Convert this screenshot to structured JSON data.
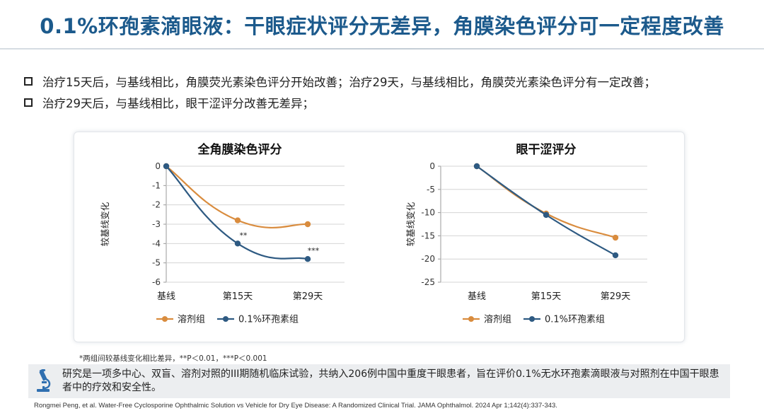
{
  "title": "0.1%环孢素滴眼液：干眼症状评分无差异，角膜染色评分可一定程度改善",
  "bullets": [
    "治疗15天后，与基线相比，角膜荧光素染色评分开始改善；治疗29天，与基线相比，角膜荧光素染色评分有一定改善；",
    "治疗29天后，与基线相比，眼干涩评分改善无差异；"
  ],
  "colors": {
    "title": "#1c5a8c",
    "vehicle": "#d98c3e",
    "cyclosporine": "#2e5a82"
  },
  "chart_data": [
    {
      "type": "line",
      "title": "全角膜染色评分",
      "ylabel": "较基线变化",
      "categories": [
        "基线",
        "第15天",
        "第29天"
      ],
      "ylim": [
        -6,
        0
      ],
      "yticks": [
        0,
        -1,
        -2,
        -3,
        -4,
        -5,
        -6
      ],
      "series": [
        {
          "name": "溶剂组",
          "color": "#d98c3e",
          "values": [
            0,
            -2.8,
            -3.0
          ]
        },
        {
          "name": "0.1%环孢素组",
          "color": "#2e5a82",
          "values": [
            0,
            -4.0,
            -4.8
          ]
        }
      ],
      "annotations": [
        {
          "category": "第15天",
          "text": "**",
          "anchor_value": -4.0
        },
        {
          "category": "第29天",
          "text": "***",
          "anchor_value": -4.8
        }
      ],
      "legend": "bottom"
    },
    {
      "type": "line",
      "title": "眼干涩评分",
      "ylabel": "较基线变化",
      "categories": [
        "基线",
        "第15天",
        "第29天"
      ],
      "ylim": [
        -25,
        0
      ],
      "yticks": [
        0,
        -5,
        -10,
        -15,
        -20,
        -25
      ],
      "series": [
        {
          "name": "溶剂组",
          "color": "#d98c3e",
          "values": [
            0,
            -10.2,
            -15.4
          ]
        },
        {
          "name": "0.1%环孢素组",
          "color": "#2e5a82",
          "values": [
            0,
            -10.5,
            -19.2
          ]
        }
      ],
      "annotations": [],
      "legend": "bottom"
    }
  ],
  "footnote": "*两组间较基线变化相比差异，**P＜0.01，***P＜0.001",
  "study": {
    "icon": "microscope-icon",
    "text": "研究是一项多中心、双盲、溶剂对照的III期随机临床试验，共纳入206例中国中重度干眼患者，旨在评价0.1%无水环孢素滴眼液与对照剂在中国干眼患者中的疗效和安全性。"
  },
  "reference": "Rongmei Peng, et al. Water-Free Cyclosporine Ophthalmic Solution vs Vehicle for Dry Eye Disease: A Randomized Clinical Trial. JAMA Ophthalmol. 2024 Apr 1;142(4):337-343."
}
